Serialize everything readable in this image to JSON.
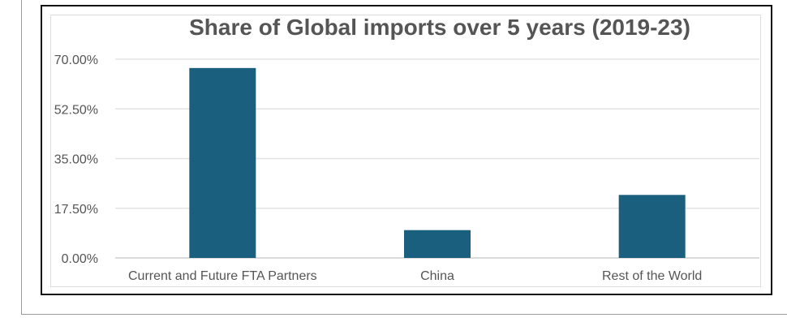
{
  "chart_data": {
    "type": "bar",
    "title": "Share of Global imports over 5 years (2019-23)",
    "categories": [
      "Current and Future FTA Partners",
      "China",
      "Rest of the World"
    ],
    "values": [
      66.9,
      9.8,
      22.2
    ],
    "unit": "%",
    "ylim": [
      0,
      70
    ],
    "yticks": [
      "0.00%",
      "17.50%",
      "35.00%",
      "52.50%",
      "70.00%"
    ],
    "ytick_values": [
      0,
      17.5,
      35,
      52.5,
      70
    ],
    "xlabel": "",
    "ylabel": "",
    "grid": true,
    "legend": "none",
    "colors": {
      "bar": "#1b5f7e",
      "grid": "#e3e3e3",
      "tick_text": "#555555",
      "title": "#555555"
    }
  }
}
